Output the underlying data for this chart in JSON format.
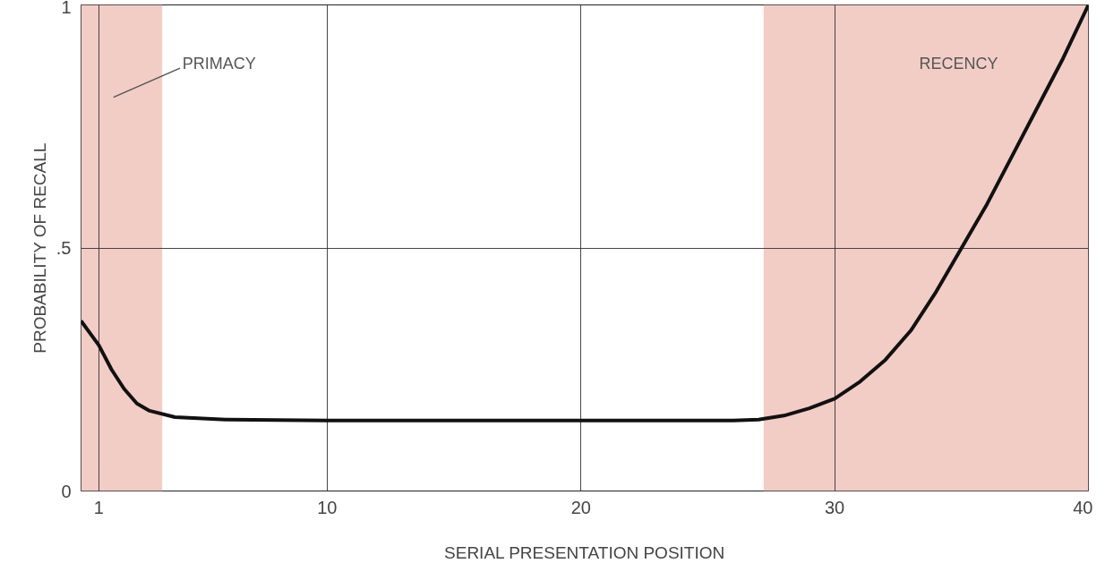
{
  "chart_data": {
    "type": "line",
    "xlabel": "SERIAL PRESENTATION POSITION",
    "ylabel": "PROBABILITY OF RECALL",
    "x": [
      0.3,
      1,
      1.5,
      2,
      2.5,
      3,
      4,
      6,
      10,
      20,
      26,
      27,
      28,
      29,
      30,
      31,
      32,
      33,
      34,
      35,
      36,
      37,
      38,
      39,
      40
    ],
    "series": [
      {
        "color": "#111111",
        "values": [
          0.35,
          0.3,
          0.25,
          0.21,
          0.18,
          0.165,
          0.152,
          0.147,
          0.145,
          0.145,
          0.145,
          0.147,
          0.155,
          0.17,
          0.19,
          0.225,
          0.27,
          0.33,
          0.41,
          0.5,
          0.59,
          0.69,
          0.79,
          0.89,
          1.0
        ]
      }
    ],
    "xlim": [
      0.3,
      40
    ],
    "ylim": [
      0,
      1
    ],
    "xticks": [
      1,
      10,
      20,
      30,
      40
    ],
    "yticks": [
      0,
      {
        "value": 0.5,
        "label": ".5"
      },
      1
    ],
    "bands": [
      {
        "axis": "x",
        "from": 0.3,
        "to": 3.5,
        "color": "#f2cdc6",
        "label": "PRIMACY"
      },
      {
        "axis": "x",
        "from": 27.2,
        "to": 40,
        "color": "#f2cdc6",
        "label": "RECENCY"
      }
    ],
    "grid": true,
    "marker": "none",
    "line_style": "solid"
  }
}
